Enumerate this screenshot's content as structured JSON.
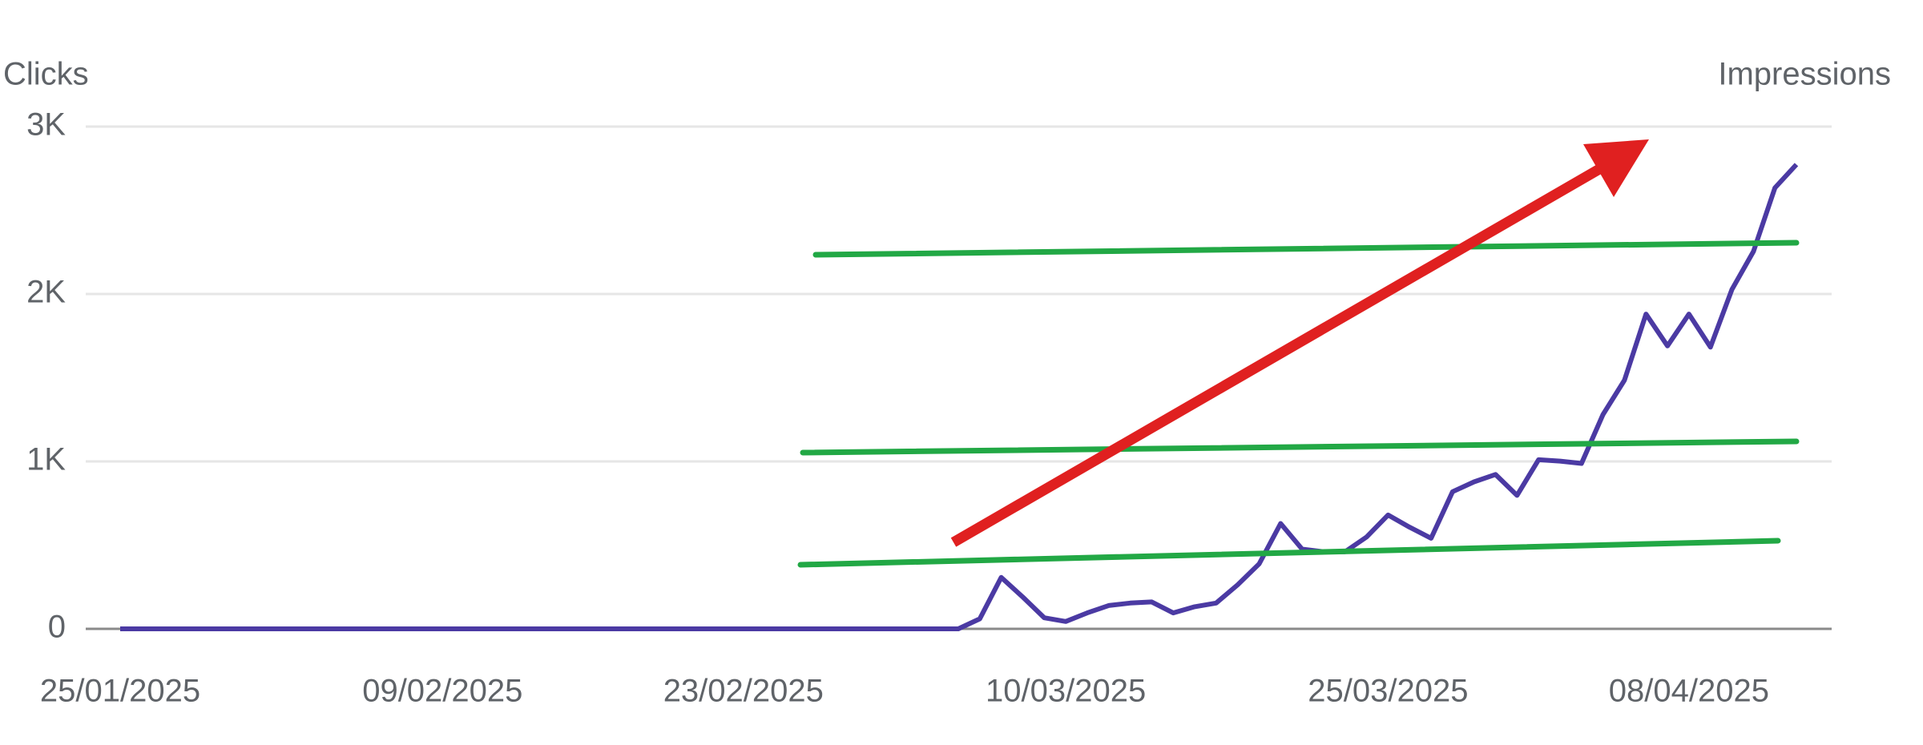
{
  "chart_data": {
    "type": "line",
    "y_label": "Clicks",
    "y2_label": "Impressions",
    "x": [
      "25/01/2025",
      "26/01/2025",
      "27/01/2025",
      "28/01/2025",
      "29/01/2025",
      "30/01/2025",
      "31/01/2025",
      "01/02/2025",
      "02/02/2025",
      "03/02/2025",
      "04/02/2025",
      "05/02/2025",
      "06/02/2025",
      "07/02/2025",
      "08/02/2025",
      "09/02/2025",
      "10/02/2025",
      "11/02/2025",
      "12/02/2025",
      "13/02/2025",
      "14/02/2025",
      "15/02/2025",
      "16/02/2025",
      "17/02/2025",
      "18/02/2025",
      "19/02/2025",
      "20/02/2025",
      "21/02/2025",
      "22/02/2025",
      "23/02/2025",
      "24/02/2025",
      "25/02/2025",
      "26/02/2025",
      "27/02/2025",
      "28/02/2025",
      "01/03/2025",
      "02/03/2025",
      "03/03/2025",
      "04/03/2025",
      "05/03/2025",
      "06/03/2025",
      "07/03/2025",
      "08/03/2025",
      "09/03/2025",
      "10/03/2025",
      "11/03/2025",
      "12/03/2025",
      "13/03/2025",
      "14/03/2025",
      "15/03/2025",
      "16/03/2025",
      "17/03/2025",
      "18/03/2025",
      "19/03/2025",
      "20/03/2025",
      "21/03/2025",
      "22/03/2025",
      "23/03/2025",
      "24/03/2025",
      "25/03/2025",
      "26/03/2025",
      "27/03/2025",
      "28/03/2025",
      "29/03/2025",
      "30/03/2025",
      "31/03/2025",
      "01/04/2025",
      "02/04/2025",
      "03/04/2025",
      "04/04/2025",
      "05/04/2025",
      "06/04/2025",
      "07/04/2025",
      "08/04/2025",
      "09/04/2025",
      "10/04/2025",
      "11/04/2025",
      "12/04/2025",
      "13/04/2025"
    ],
    "series": [
      {
        "name": "Clicks",
        "color": "#4b3aa3",
        "values": [
          0,
          0,
          0,
          0,
          0,
          0,
          0,
          0,
          0,
          0,
          0,
          0,
          0,
          0,
          0,
          0,
          0,
          0,
          0,
          0,
          0,
          0,
          0,
          0,
          0,
          0,
          0,
          0,
          0,
          0,
          0,
          0,
          0,
          0,
          0,
          0,
          0,
          0,
          0,
          0,
          60,
          307,
          190,
          66,
          44,
          95,
          139,
          154,
          161,
          95,
          132,
          154,
          263,
          388,
          629,
          476,
          461,
          461,
          549,
          680,
          607,
          541,
          819,
          878,
          922,
          797,
          1010,
          1002,
          988,
          1280,
          1485,
          1880,
          1690,
          1880,
          1683,
          2027,
          2254,
          2634,
          2773
        ]
      }
    ],
    "xticks": [
      "25/01/2025",
      "09/02/2025",
      "23/02/2025",
      "10/03/2025",
      "25/03/2025",
      "08/04/2025"
    ],
    "ylim": [
      0,
      3000
    ],
    "yticks": [
      0,
      {
        "value": 1000,
        "label": "1K"
      },
      {
        "value": 2000,
        "label": "2K"
      },
      {
        "value": 3000,
        "label": "3K"
      }
    ],
    "grid": true
  }
}
